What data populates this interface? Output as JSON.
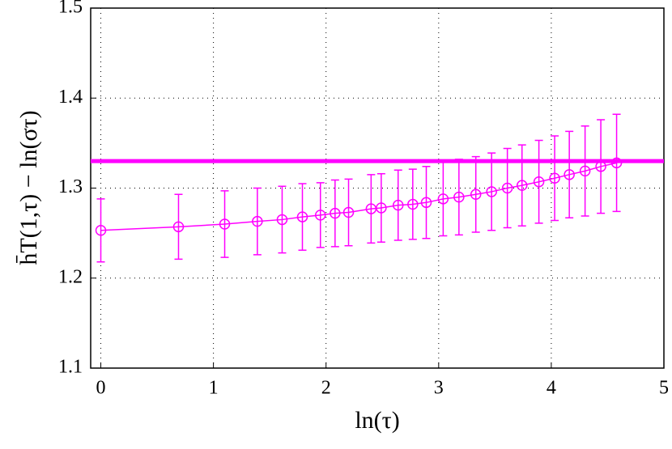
{
  "chart_data": {
    "type": "errorbar_line",
    "xlabel": "ln(τ)",
    "ylabel": "h̄T(1,τ) − ln(στ)",
    "x": [
      0,
      0.69,
      1.1,
      1.39,
      1.61,
      1.79,
      1.95,
      2.08,
      2.2,
      2.4,
      2.49,
      2.64,
      2.77,
      2.89,
      3.04,
      3.18,
      3.33,
      3.47,
      3.61,
      3.74,
      3.89,
      4.03,
      4.16,
      4.3,
      4.44,
      4.58
    ],
    "series": [
      {
        "color": "#ff00ff",
        "values": [
          1.253,
          1.257,
          1.26,
          1.263,
          1.265,
          1.268,
          1.27,
          1.272,
          1.273,
          1.277,
          1.278,
          1.281,
          1.282,
          1.284,
          1.288,
          1.29,
          1.293,
          1.296,
          1.3,
          1.303,
          1.307,
          1.311,
          1.315,
          1.319,
          1.324,
          1.328
        ],
        "errors": [
          0.035,
          0.036,
          0.037,
          0.037,
          0.037,
          0.037,
          0.036,
          0.037,
          0.037,
          0.038,
          0.038,
          0.039,
          0.039,
          0.04,
          0.041,
          0.042,
          0.042,
          0.043,
          0.044,
          0.045,
          0.046,
          0.047,
          0.048,
          0.05,
          0.052,
          0.054
        ]
      }
    ],
    "reference_line": {
      "value": 1.33,
      "color": "#ff00ff"
    },
    "xlim": [
      -0.09,
      5
    ],
    "xticks": [
      0,
      1,
      2,
      3,
      4,
      5
    ],
    "ylim": [
      1.1,
      1.5
    ],
    "yticks": [
      1.1,
      1.2,
      1.3,
      1.4,
      1.5
    ],
    "grid": true
  }
}
